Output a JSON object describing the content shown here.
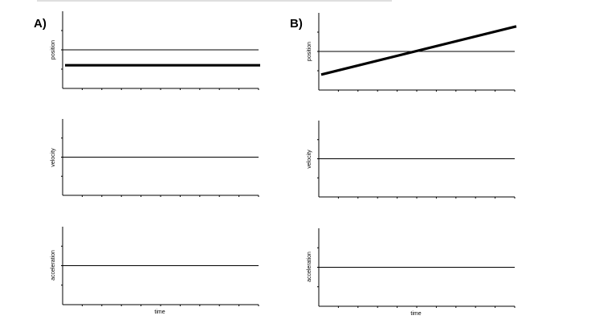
{
  "panels": [
    {
      "letter": "A)",
      "graphs": [
        {
          "ylabel": "position",
          "line": {
            "y_start": -0.8,
            "y_end": -0.8,
            "style": "bold"
          }
        },
        {
          "ylabel": "velocity",
          "line": null
        },
        {
          "ylabel": "acceleration",
          "line": null
        }
      ],
      "xlabel": "time"
    },
    {
      "letter": "B)",
      "graphs": [
        {
          "ylabel": "position",
          "line": {
            "y_start": -1.2,
            "y_end": 1.3,
            "style": "bold"
          }
        },
        {
          "ylabel": "velocity",
          "line": null
        },
        {
          "ylabel": "acceleration",
          "line": null
        }
      ],
      "xlabel": "time"
    }
  ],
  "ticks_per_axis": 10,
  "colors": {
    "ink": "#000000",
    "top_rule": "#bfbfbf"
  }
}
